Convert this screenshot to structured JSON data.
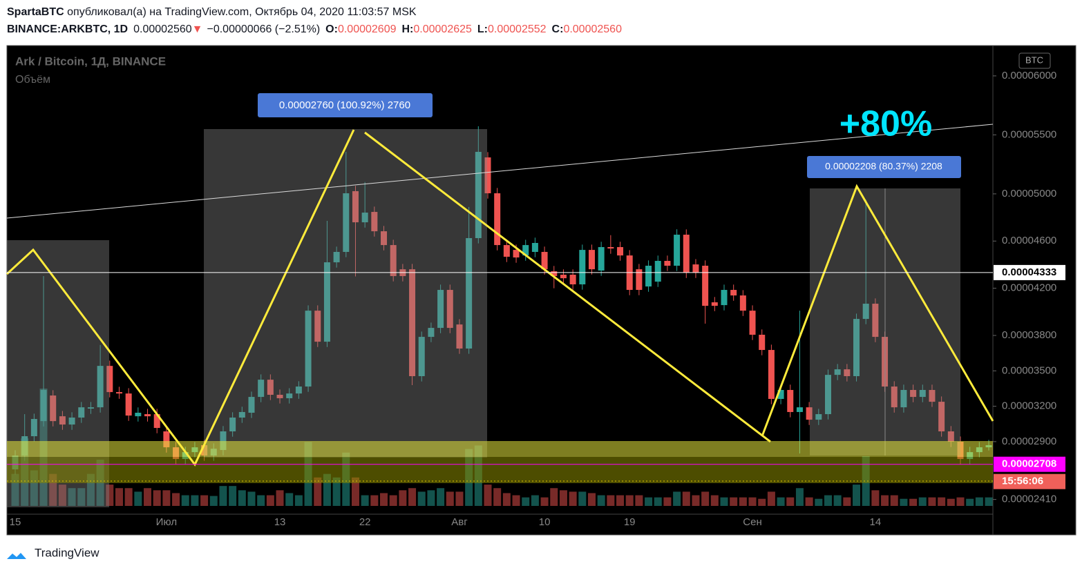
{
  "header": {
    "author": "SpartaBTC",
    "published": " опубликовал(а) на TradingView.com, Октябрь 04, 2020 11:03:57 MSK",
    "symbol": "BINANCE:ARKBTC, 1D",
    "last": "0.00002560",
    "arrow": "▼",
    "change": "−0.00000066 (−2.51%)",
    "o_label": "O:",
    "o": "0.00002609",
    "h_label": "H:",
    "h": "0.00002625",
    "l_label": "L:",
    "l": "0.00002552",
    "c_label": "C:",
    "c": "0.00002560"
  },
  "chart_data": {
    "type": "candlestick",
    "title": "Ark / Bitcoin, 1Д, BINANCE",
    "subtitle": "Объём",
    "currency": "BTC",
    "up_color": "#26a69a",
    "down_color": "#ef5350",
    "categories": [
      "15",
      null,
      null,
      null,
      null,
      null,
      null,
      null,
      null,
      null,
      null,
      null,
      null,
      null,
      null,
      null,
      "Июл",
      null,
      null,
      null,
      null,
      null,
      null,
      null,
      null,
      null,
      null,
      null,
      "13",
      null,
      null,
      null,
      null,
      null,
      null,
      null,
      null,
      "22",
      null,
      null,
      null,
      null,
      null,
      null,
      null,
      null,
      null,
      "Авг",
      null,
      null,
      null,
      null,
      null,
      null,
      null,
      null,
      "10",
      null,
      null,
      null,
      null,
      null,
      null,
      null,
      null,
      "19",
      null,
      null,
      null,
      null,
      null,
      null,
      null,
      null,
      null,
      null,
      null,
      null,
      "Сен",
      null,
      null,
      null,
      null,
      null,
      null,
      null,
      null,
      null,
      null,
      null,
      null,
      "14",
      null,
      null,
      null,
      null,
      null,
      null,
      null,
      null,
      null,
      null,
      null,
      null
    ],
    "open": [
      2.665e-05,
      2.782e-05,
      2.946e-05,
      3.074e-05,
      3.291e-05,
      3.115e-05,
      3.045e-05,
      3.104e-05,
      3.18e-05,
      3.191e-05,
      3.542e-05,
      3.32e-05,
      3.308e-05,
      3.115e-05,
      3.133e-05,
      3.133e-05,
      2.987e-05,
      2.852e-05,
      2.753e-05,
      2.811e-05,
      2.87e-05,
      2.782e-05,
      2.829e-05,
      2.987e-05,
      3.104e-05,
      3.145e-05,
      3.279e-05,
      3.425e-05,
      3.297e-05,
      3.268e-05,
      3.308e-05,
      3.367e-05,
      4.01e-05,
      3.747e-05,
      4.42e-05,
      4.508e-05,
      5.023e-05,
      4.759e-05,
      4.847e-05,
      4.683e-05,
      4.566e-05,
      4.361e-05,
      4.361e-05,
      3.455e-05,
      3.788e-05,
      3.864e-05,
      4.186e-05,
      3.893e-05,
      3.689e-05,
      4.625e-05,
      5.309e-05,
      5.005e-05,
      4.566e-05,
      4.525e-05,
      4.478e-05,
      4.508e-05,
      4.508e-05,
      4.344e-05,
      4.315e-05,
      4.315e-05,
      4.233e-05,
      4.525e-05,
      4.35e-05,
      4.549e-05,
      4.549e-05,
      4.478e-05,
      4.361e-05,
      4.215e-05,
      4.256e-05,
      4.432e-05,
      4.391e-05,
      4.654e-05,
      4.402e-05,
      4.391e-05,
      4.081e-05,
      4.057e-05,
      4.186e-05,
      4.139e-05,
      4.01e-05,
      3.806e-05,
      3.677e-05,
      3.262e-05,
      3.338e-05,
      3.151e-05,
      3.191e-05,
      3.086e-05,
      3.133e-05,
      3.466e-05,
      3.513e-05,
      3.455e-05,
      3.94e-05,
      4.069e-05,
      3.788e-05,
      3.367e-05,
      3.191e-05,
      3.338e-05,
      3.279e-05,
      3.338e-05,
      3.238e-05,
      2.987e-05,
      2.899e-05,
      2.753e-05,
      2.811e-05,
      2.852e-05
    ],
    "high": [
      2.827e-05,
      3.133e-05,
      3.137e-05,
      4.303e-05,
      3.336e-05,
      3.16e-05,
      3.149e-05,
      3.236e-05,
      3.236e-05,
      3.719e-05,
      3.587e-05,
      3.365e-05,
      3.353e-05,
      3.19e-05,
      3.178e-05,
      3.178e-05,
      3.032e-05,
      2.897e-05,
      2.856e-05,
      2.897e-05,
      2.915e-05,
      2.885e-05,
      3.032e-05,
      3.149e-05,
      3.196e-05,
      3.324e-05,
      3.47e-05,
      3.47e-05,
      3.342e-05,
      3.353e-05,
      3.412e-05,
      4.055e-05,
      4.055e-05,
      4.771e-05,
      4.553e-05,
      5.356e-05,
      5.068e-05,
      5.1e-05,
      4.892e-05,
      4.728e-05,
      4.611e-05,
      4.406e-05,
      4.406e-05,
      3.833e-05,
      3.909e-05,
      4.231e-05,
      4.231e-05,
      3.938e-05,
      4.889e-05,
      5.573e-05,
      5.354e-05,
      5.05e-05,
      4.611e-05,
      4.57e-05,
      4.611e-05,
      4.629e-05,
      4.553e-05,
      4.389e-05,
      4.36e-05,
      4.36e-05,
      4.57e-05,
      4.57e-05,
      4.594e-05,
      4.65e-05,
      4.594e-05,
      4.523e-05,
      4.406e-05,
      4.436e-05,
      4.477e-05,
      4.477e-05,
      4.7e-05,
      4.699e-05,
      4.447e-05,
      4.436e-05,
      4.126e-05,
      4.231e-05,
      4.231e-05,
      4.184e-05,
      4.055e-05,
      3.851e-05,
      3.722e-05,
      3.383e-05,
      3.383e-05,
      4.01e-05,
      3.236e-05,
      3.178e-05,
      3.511e-05,
      3.558e-05,
      3.558e-05,
      3.985e-05,
      4.95e-05,
      4.114e-05,
      3.833e-05,
      3.412e-05,
      3.383e-05,
      3.383e-05,
      3.383e-05,
      3.383e-05,
      3.283e-05,
      3.032e-05,
      2.944e-05,
      2.856e-05,
      2.897e-05,
      2.915e-05
    ],
    "low": [
      2.62e-05,
      2.737e-05,
      2.901e-05,
      3.029e-05,
      3.029e-05,
      3e-05,
      3e-05,
      3.059e-05,
      3.135e-05,
      3.146e-05,
      3.275e-05,
      3.263e-05,
      3.076e-05,
      3.07e-05,
      3.07e-05,
      2.971e-05,
      2.807e-05,
      2.708e-05,
      2.708e-05,
      2.766e-05,
      2.737e-05,
      2.737e-05,
      2.784e-05,
      2.942e-05,
      3.059e-05,
      3.1e-05,
      3.234e-05,
      3.252e-05,
      3.223e-05,
      3.223e-05,
      3.263e-05,
      3.322e-05,
      3.702e-05,
      3.702e-05,
      4.375e-05,
      4.463e-05,
      4.3e-05,
      4.714e-05,
      4.638e-05,
      4.521e-05,
      4.258e-05,
      4.258e-05,
      3.379e-05,
      3.41e-05,
      3.743e-05,
      3.819e-05,
      3.819e-05,
      3.644e-05,
      3.644e-05,
      4.58e-05,
      4.96e-05,
      4.521e-05,
      4.422e-05,
      4.416e-05,
      4.433e-05,
      4.463e-05,
      4.316e-05,
      4.2e-05,
      4.24e-05,
      4.188e-05,
      4.188e-05,
      4.316e-05,
      4.305e-05,
      4.492e-05,
      4.433e-05,
      4.141e-05,
      4.141e-05,
      4.17e-05,
      4.211e-05,
      4.346e-05,
      4.346e-05,
      4.287e-05,
      4.287e-05,
      3.9e-05,
      4.006e-05,
      4.012e-05,
      4.094e-05,
      3.965e-05,
      3.761e-05,
      3.632e-05,
      3.217e-05,
      3.217e-05,
      3.106e-05,
      2.8e-05,
      3.041e-05,
      3.041e-05,
      3.088e-05,
      3.421e-05,
      3.41e-05,
      3.41e-05,
      3.895e-05,
      3.743e-05,
      3.322e-05,
      3.146e-05,
      3.146e-05,
      3.234e-05,
      3.234e-05,
      3.194e-05,
      2.942e-05,
      2.854e-05,
      2.708e-05,
      2.708e-05,
      2.766e-05,
      2.825e-05
    ],
    "close": [
      2.782e-05,
      2.946e-05,
      3.092e-05,
      3.338e-05,
      3.074e-05,
      3.045e-05,
      3.104e-05,
      3.191e-05,
      3.191e-05,
      3.542e-05,
      3.32e-05,
      3.308e-05,
      3.121e-05,
      3.145e-05,
      3.115e-05,
      3.016e-05,
      2.852e-05,
      2.753e-05,
      2.811e-05,
      2.852e-05,
      2.782e-05,
      2.84e-05,
      2.987e-05,
      3.104e-05,
      3.151e-05,
      3.279e-05,
      3.425e-05,
      3.297e-05,
      3.268e-05,
      3.308e-05,
      3.367e-05,
      4.01e-05,
      3.747e-05,
      4.42e-05,
      4.508e-05,
      5.005e-05,
      4.759e-05,
      4.841e-05,
      4.683e-05,
      4.566e-05,
      4.303e-05,
      4.303e-05,
      3.455e-05,
      3.788e-05,
      3.864e-05,
      4.186e-05,
      3.864e-05,
      3.689e-05,
      4.625e-05,
      5.356e-05,
      5.005e-05,
      4.566e-05,
      4.467e-05,
      4.461e-05,
      4.566e-05,
      4.584e-05,
      4.361e-05,
      4.303e-05,
      4.285e-05,
      4.233e-05,
      4.525e-05,
      4.361e-05,
      4.549e-05,
      4.537e-05,
      4.478e-05,
      4.186e-05,
      4.186e-05,
      4.391e-05,
      4.432e-05,
      4.391e-05,
      4.654e-05,
      4.332e-05,
      4.332e-05,
      4.051e-05,
      4.051e-05,
      4.186e-05,
      4.139e-05,
      4.01e-05,
      3.806e-05,
      3.677e-05,
      3.262e-05,
      3.338e-05,
      3.151e-05,
      3.191e-05,
      3.086e-05,
      3.133e-05,
      3.466e-05,
      3.513e-05,
      3.455e-05,
      3.94e-05,
      4.069e-05,
      3.788e-05,
      3.367e-05,
      3.191e-05,
      3.338e-05,
      3.279e-05,
      3.338e-05,
      3.238e-05,
      2.987e-05,
      2.899e-05,
      2.753e-05,
      2.811e-05,
      2.852e-05,
      2.87e-05
    ],
    "volume": [
      45,
      95,
      50,
      165,
      45,
      30,
      25,
      25,
      45,
      65,
      30,
      25,
      25,
      20,
      25,
      22,
      22,
      18,
      15,
      15,
      15,
      14,
      28,
      28,
      22,
      20,
      15,
      15,
      22,
      18,
      15,
      90,
      40,
      45,
      40,
      75,
      40,
      15,
      15,
      18,
      15,
      22,
      25,
      20,
      22,
      25,
      20,
      20,
      80,
      85,
      30,
      25,
      18,
      15,
      12,
      15,
      12,
      25,
      22,
      20,
      20,
      18,
      15,
      15,
      15,
      15,
      15,
      12,
      12,
      12,
      20,
      20,
      15,
      20,
      15,
      12,
      12,
      12,
      12,
      10,
      20,
      12,
      12,
      25,
      12,
      10,
      15,
      15,
      12,
      30,
      70,
      22,
      15,
      15,
      10,
      10,
      12,
      12,
      12,
      10,
      12,
      10,
      12,
      12
    ],
    "ylim": [
      2.285e-05,
      6.257e-05
    ],
    "yticks": [
      {
        "value": 6e-05,
        "label": "0.00006000"
      },
      {
        "value": 5.5e-05,
        "label": "0.00005500"
      },
      {
        "value": 5e-05,
        "label": "0.00005000"
      },
      {
        "value": 4.6e-05,
        "label": "0.00004600"
      },
      {
        "value": 4.2e-05,
        "label": "0.00004200"
      },
      {
        "value": 3.8e-05,
        "label": "0.00003800"
      },
      {
        "value": 3.5e-05,
        "label": "0.00003500"
      },
      {
        "value": 3.2e-05,
        "label": "0.00003200"
      },
      {
        "value": 2.9e-05,
        "label": "0.00002900"
      },
      {
        "value": 2.41e-05,
        "label": "0.00002410"
      }
    ],
    "price_lines": [
      {
        "value": 4.333e-05,
        "label": "0.00004333",
        "color": "#ffffff"
      },
      {
        "value": 2.708e-05,
        "label": "0.00002708",
        "color": "#ff00ff"
      }
    ],
    "countdown": "15:56:06",
    "annotations": [
      "0.00002760 (100.92%) 2760",
      "0.00002208 (80.37%) 2208",
      "+80%"
    ]
  },
  "footer": {
    "brand": "TradingView"
  }
}
